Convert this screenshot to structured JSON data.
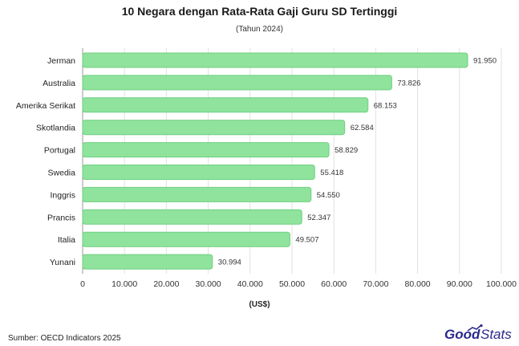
{
  "chart_data": {
    "type": "bar",
    "orientation": "horizontal",
    "title": "10 Negara dengan Rata-Rata Gaji Guru SD Tertinggi",
    "subtitle": "(Tahun 2024)",
    "xlabel": "(US$)",
    "categories": [
      "Jerman",
      "Australia",
      "Amerika Serikat",
      "Skotlandia",
      "Portugal",
      "Swedia",
      "Inggris",
      "Prancis",
      "Italia",
      "Yunani"
    ],
    "values": [
      91950,
      73826,
      68153,
      62584,
      58829,
      55418,
      54550,
      52347,
      49507,
      30994
    ],
    "value_labels": [
      "91.950",
      "73.826",
      "68.153",
      "62.584",
      "58.829",
      "55.418",
      "54.550",
      "52.347",
      "49.507",
      "30.994"
    ],
    "xlim": [
      0,
      100000
    ],
    "xticks": [
      0,
      10000,
      20000,
      30000,
      40000,
      50000,
      60000,
      70000,
      80000,
      90000,
      100000
    ],
    "xtick_labels": [
      "0",
      "10.000",
      "20.000",
      "30.000",
      "40.000",
      "50.000",
      "60.000",
      "70.000",
      "80.000",
      "90.000",
      "100.000"
    ],
    "grid": true,
    "bar_color": "#8fe39c",
    "bar_stroke": "#6fcf80"
  },
  "source": "Sumber: OECD Indicators 2025",
  "logo": {
    "part1": "Good",
    "part2": "Stats",
    "color": "#2b2a8c"
  }
}
